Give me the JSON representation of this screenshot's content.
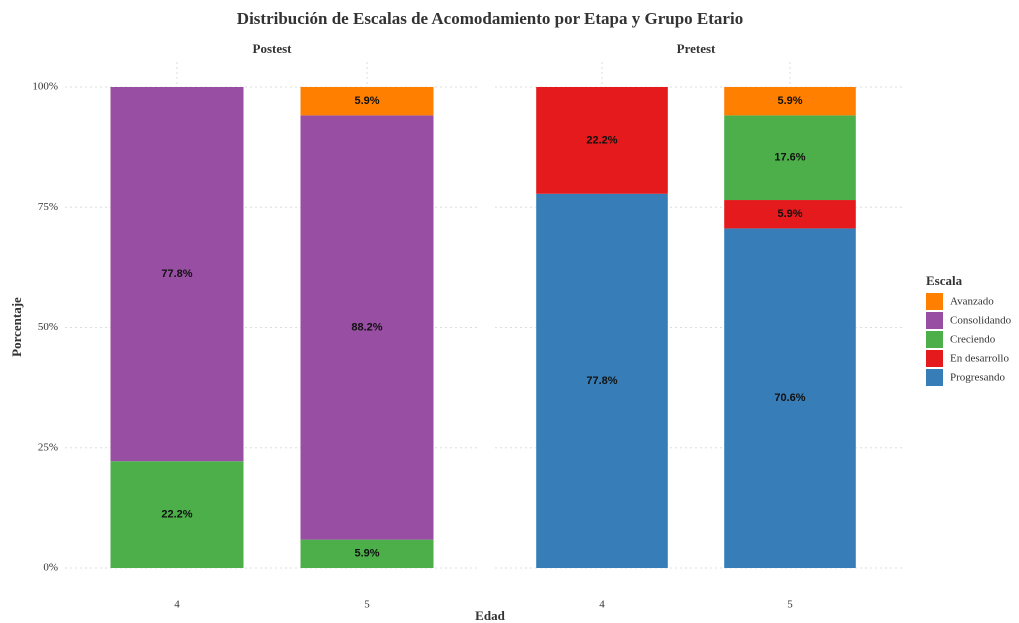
{
  "chart_data": {
    "type": "bar",
    "stacked": true,
    "title": "Distribución de Escalas de Acomodamiento por Etapa y Grupo Etario",
    "xlabel": "Edad",
    "ylabel": "Porcentaje",
    "legend_title": "Escala",
    "facets": [
      "Postest",
      "Pretest"
    ],
    "categories": [
      "4",
      "5"
    ],
    "ylim": [
      0,
      100
    ],
    "yticks": [
      {
        "value": 0,
        "label": "0%"
      },
      {
        "value": 25,
        "label": "25%"
      },
      {
        "value": 50,
        "label": "50%"
      },
      {
        "value": 75,
        "label": "75%"
      },
      {
        "value": 100,
        "label": "100%"
      }
    ],
    "grid": true,
    "series": [
      {
        "name": "Avanzado",
        "color": "#ff7f00",
        "values": [
          [
            null,
            5.9
          ],
          [
            null,
            5.9
          ]
        ],
        "value_labels": [
          [
            null,
            "5.9%"
          ],
          [
            null,
            "5.9%"
          ]
        ]
      },
      {
        "name": "Consolidando",
        "color": "#984ea3",
        "values": [
          [
            77.8,
            88.2
          ],
          [
            null,
            null
          ]
        ],
        "value_labels": [
          [
            "77.8%",
            "88.2%"
          ],
          [
            null,
            null
          ]
        ]
      },
      {
        "name": "Creciendo",
        "color": "#4daf4a",
        "values": [
          [
            22.2,
            5.9
          ],
          [
            null,
            17.6
          ]
        ],
        "value_labels": [
          [
            "22.2%",
            "5.9%"
          ],
          [
            null,
            "17.6%"
          ]
        ]
      },
      {
        "name": "En desarrollo",
        "color": "#e41a1c",
        "values": [
          [
            null,
            null
          ],
          [
            22.2,
            5.9
          ]
        ],
        "value_labels": [
          [
            null,
            null
          ],
          [
            "22.2%",
            "5.9%"
          ]
        ]
      },
      {
        "name": "Progresando",
        "color": "#377eb8",
        "values": [
          [
            null,
            null
          ],
          [
            77.8,
            70.6
          ]
        ],
        "value_labels": [
          [
            null,
            null
          ],
          [
            "77.8%",
            "70.6%"
          ]
        ]
      }
    ]
  }
}
